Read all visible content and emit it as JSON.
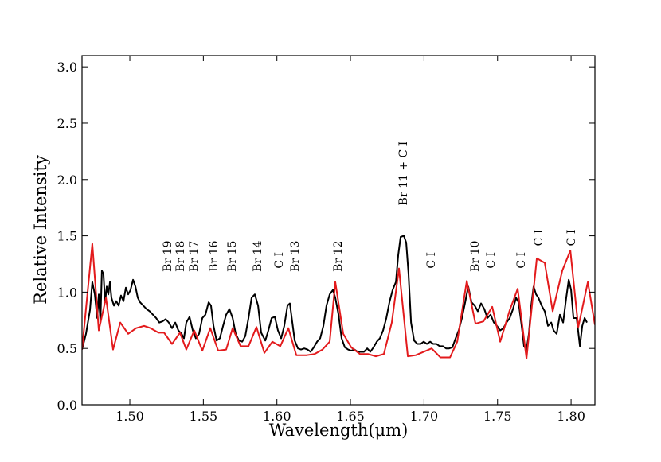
{
  "chart_data": {
    "type": "line",
    "xlabel": "Wavelength(μm)",
    "ylabel": "Relative Intensity",
    "xlim": [
      1.4675,
      1.8162
    ],
    "ylim": [
      0,
      3.1
    ],
    "xticks": [
      {
        "value": 1.5,
        "label": "1.50"
      },
      {
        "value": 1.55,
        "label": "1.55"
      },
      {
        "value": 1.6,
        "label": "1.60"
      },
      {
        "value": 1.65,
        "label": "1.65"
      },
      {
        "value": 1.7,
        "label": "1.70"
      },
      {
        "value": 1.75,
        "label": "1.75"
      },
      {
        "value": 1.8,
        "label": "1.80"
      }
    ],
    "yticks": [
      {
        "value": 0,
        "label": "0.0"
      },
      {
        "value": 0.5,
        "label": "0.5"
      },
      {
        "value": 1,
        "label": "1.0"
      },
      {
        "value": 1.5,
        "label": "1.5"
      },
      {
        "value": 2,
        "label": "2.0"
      },
      {
        "value": 2.5,
        "label": "2.5"
      },
      {
        "value": 3,
        "label": "3.0"
      }
    ],
    "series": [
      {
        "color": "#000000",
        "x": [
          1.4675,
          1.4702,
          1.4729,
          1.4745,
          1.4762,
          1.4778,
          1.4789,
          1.48,
          1.481,
          1.4821,
          1.4832,
          1.4843,
          1.4854,
          1.4865,
          1.4875,
          1.4892,
          1.4908,
          1.4924,
          1.494,
          1.4957,
          1.4973,
          1.4989,
          1.5005,
          1.5022,
          1.5038,
          1.5054,
          1.507,
          1.5092,
          1.5114,
          1.5135,
          1.5157,
          1.5179,
          1.52,
          1.5222,
          1.5244,
          1.5265,
          1.5287,
          1.5309,
          1.533,
          1.5352,
          1.5368,
          1.5384,
          1.5406,
          1.5428,
          1.5449,
          1.5471,
          1.5493,
          1.5514,
          1.5536,
          1.5552,
          1.5569,
          1.559,
          1.5612,
          1.5634,
          1.5655,
          1.5677,
          1.5699,
          1.572,
          1.5742,
          1.5764,
          1.5785,
          1.5807,
          1.5828,
          1.585,
          1.5872,
          1.5893,
          1.5921,
          1.5942,
          1.5964,
          1.5986,
          1.6007,
          1.6029,
          1.605,
          1.6072,
          1.6088,
          1.6105,
          1.6121,
          1.6143,
          1.6164,
          1.6186,
          1.6208,
          1.6229,
          1.6251,
          1.6273,
          1.6294,
          1.6316,
          1.6337,
          1.6359,
          1.6381,
          1.6397,
          1.6419,
          1.644,
          1.6462,
          1.6484,
          1.6505,
          1.6527,
          1.6549,
          1.657,
          1.6592,
          1.6614,
          1.6635,
          1.6657,
          1.6679,
          1.67,
          1.6722,
          1.6744,
          1.6765,
          1.6787,
          1.6809,
          1.6825,
          1.6841,
          1.6863,
          1.6879,
          1.6895,
          1.6912,
          1.6933,
          1.6955,
          1.6977,
          1.6998,
          1.702,
          1.7042,
          1.7063,
          1.7085,
          1.7106,
          1.7128,
          1.715,
          1.7171,
          1.7193,
          1.7215,
          1.7236,
          1.7258,
          1.728,
          1.7301,
          1.7323,
          1.7345,
          1.7366,
          1.7388,
          1.741,
          1.7431,
          1.7453,
          1.7475,
          1.7496,
          1.7518,
          1.754,
          1.7561,
          1.7583,
          1.7605,
          1.7626,
          1.7643,
          1.7664,
          1.768,
          1.7697,
          1.7713,
          1.7729,
          1.7745,
          1.7762,
          1.7778,
          1.78,
          1.7821,
          1.7843,
          1.7865,
          1.7881,
          1.7902,
          1.7924,
          1.7946,
          1.7967,
          1.7984,
          1.8,
          1.8016,
          1.8038,
          1.806,
          1.8076,
          1.8092,
          1.8108
        ],
        "values": [
          0.49,
          0.63,
          0.84,
          1.09,
          0.98,
          0.77,
          0.98,
          0.73,
          1.19,
          1.16,
          0.91,
          1.05,
          0.98,
          1.09,
          0.95,
          0.88,
          0.92,
          0.88,
          0.97,
          0.92,
          1.04,
          0.98,
          1.02,
          1.11,
          1.05,
          0.95,
          0.91,
          0.88,
          0.85,
          0.83,
          0.8,
          0.77,
          0.73,
          0.74,
          0.76,
          0.73,
          0.68,
          0.73,
          0.66,
          0.63,
          0.59,
          0.73,
          0.78,
          0.66,
          0.59,
          0.63,
          0.77,
          0.8,
          0.91,
          0.88,
          0.7,
          0.57,
          0.59,
          0.7,
          0.8,
          0.85,
          0.77,
          0.63,
          0.57,
          0.56,
          0.61,
          0.77,
          0.95,
          0.98,
          0.88,
          0.64,
          0.57,
          0.66,
          0.77,
          0.78,
          0.66,
          0.59,
          0.7,
          0.88,
          0.9,
          0.73,
          0.57,
          0.5,
          0.49,
          0.5,
          0.49,
          0.47,
          0.51,
          0.56,
          0.59,
          0.7,
          0.88,
          0.98,
          1.02,
          0.95,
          0.8,
          0.59,
          0.51,
          0.49,
          0.48,
          0.49,
          0.47,
          0.47,
          0.47,
          0.5,
          0.47,
          0.51,
          0.56,
          0.59,
          0.66,
          0.77,
          0.91,
          1.02,
          1.09,
          1.33,
          1.49,
          1.5,
          1.44,
          1.16,
          0.73,
          0.57,
          0.54,
          0.54,
          0.56,
          0.54,
          0.56,
          0.54,
          0.54,
          0.52,
          0.52,
          0.5,
          0.5,
          0.51,
          0.59,
          0.66,
          0.77,
          0.91,
          1.05,
          0.91,
          0.88,
          0.83,
          0.9,
          0.85,
          0.77,
          0.8,
          0.73,
          0.7,
          0.66,
          0.68,
          0.73,
          0.77,
          0.85,
          0.95,
          0.91,
          0.7,
          0.52,
          0.49,
          0.63,
          0.88,
          1.05,
          0.98,
          0.95,
          0.88,
          0.83,
          0.7,
          0.73,
          0.66,
          0.63,
          0.8,
          0.73,
          0.95,
          1.11,
          1.02,
          0.77,
          0.77,
          0.52,
          0.7,
          0.77,
          0.73
        ]
      },
      {
        "color": "#e31a1c",
        "x": [
          1.4675,
          1.4745,
          1.4789,
          1.4838,
          1.4886,
          1.4935,
          1.4989,
          1.5043,
          1.5097,
          1.5141,
          1.5195,
          1.5233,
          1.5287,
          1.5341,
          1.5384,
          1.5438,
          1.5493,
          1.5547,
          1.5601,
          1.5655,
          1.5699,
          1.5753,
          1.5807,
          1.5861,
          1.5915,
          1.5969,
          1.6023,
          1.6078,
          1.6132,
          1.6202,
          1.6256,
          1.631,
          1.6359,
          1.6397,
          1.6451,
          1.6505,
          1.6565,
          1.6619,
          1.6673,
          1.6727,
          1.6781,
          1.683,
          1.689,
          1.6944,
          1.7052,
          1.7112,
          1.7177,
          1.7226,
          1.7291,
          1.735,
          1.7404,
          1.7464,
          1.7518,
          1.7583,
          1.7637,
          1.7697,
          1.7767,
          1.7821,
          1.7875,
          1.794,
          1.7995,
          1.8049,
          1.8114,
          1.8162
        ],
        "values": [
          0.49,
          1.43,
          0.66,
          0.95,
          0.49,
          0.73,
          0.63,
          0.68,
          0.7,
          0.68,
          0.64,
          0.64,
          0.54,
          0.64,
          0.49,
          0.66,
          0.48,
          0.68,
          0.48,
          0.49,
          0.68,
          0.52,
          0.52,
          0.69,
          0.46,
          0.56,
          0.52,
          0.68,
          0.44,
          0.44,
          0.45,
          0.49,
          0.56,
          1.09,
          0.63,
          0.51,
          0.45,
          0.45,
          0.43,
          0.45,
          0.73,
          1.21,
          0.43,
          0.44,
          0.5,
          0.42,
          0.42,
          0.56,
          1.1,
          0.72,
          0.74,
          0.87,
          0.56,
          0.84,
          1.03,
          0.41,
          1.3,
          1.26,
          0.83,
          1.19,
          1.37,
          0.69,
          1.09,
          0.71
        ]
      }
    ],
    "annotations": [
      {
        "text": "Br 19",
        "x": 1.5254,
        "y": 1.18
      },
      {
        "text": "Br 18",
        "x": 1.5341,
        "y": 1.18
      },
      {
        "text": "Br 17",
        "x": 1.5433,
        "y": 1.18
      },
      {
        "text": "Br 16",
        "x": 1.5568,
        "y": 1.18
      },
      {
        "text": "Br 15",
        "x": 1.5693,
        "y": 1.18
      },
      {
        "text": "Br 14",
        "x": 1.5866,
        "y": 1.18
      },
      {
        "text": "C I",
        "x": 1.6012,
        "y": 1.21
      },
      {
        "text": "Br 13",
        "x": 1.612,
        "y": 1.18
      },
      {
        "text": "Br 12",
        "x": 1.6413,
        "y": 1.18
      },
      {
        "text": "Br 11 + C I",
        "x": 1.6857,
        "y": 1.77
      },
      {
        "text": "C I",
        "x": 1.7046,
        "y": 1.21
      },
      {
        "text": "Br 10",
        "x": 1.7344,
        "y": 1.18
      },
      {
        "text": "C I",
        "x": 1.7452,
        "y": 1.21
      },
      {
        "text": "C I",
        "x": 1.7658,
        "y": 1.21
      },
      {
        "text": "C I",
        "x": 1.7777,
        "y": 1.41
      },
      {
        "text": "C I",
        "x": 1.8,
        "y": 1.41
      }
    ]
  }
}
